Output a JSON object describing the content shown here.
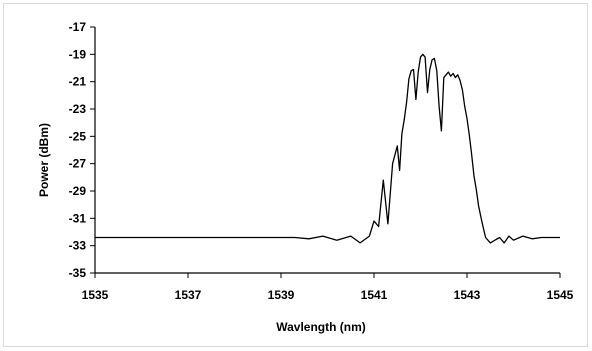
{
  "chart_data": {
    "type": "line",
    "title": "",
    "xlabel": "Wavlength (nm)",
    "ylabel": "Power (dBm)",
    "xlim": [
      1535,
      1545
    ],
    "ylim": [
      -35,
      -17
    ],
    "x_ticks": [
      1535,
      1537,
      1539,
      1541,
      1543,
      1545
    ],
    "y_ticks": [
      -35,
      -33,
      -31,
      -29,
      -27,
      -25,
      -23,
      -21,
      -19,
      -17
    ],
    "grid": false,
    "legend": "none",
    "line_color": "#000000",
    "series": [
      {
        "x": [
          1535.0,
          1535.5,
          1536.0,
          1536.5,
          1537.0,
          1537.5,
          1538.0,
          1538.5,
          1539.0,
          1539.3,
          1539.6,
          1539.9,
          1540.2,
          1540.5,
          1540.7,
          1540.9,
          1541.0,
          1541.1,
          1541.2,
          1541.3,
          1541.4,
          1541.5,
          1541.55,
          1541.6,
          1541.65,
          1541.7,
          1541.75,
          1541.8,
          1541.85,
          1541.9,
          1541.95,
          1542.0,
          1542.05,
          1542.1,
          1542.15,
          1542.2,
          1542.25,
          1542.3,
          1542.35,
          1542.4,
          1542.45,
          1542.5,
          1542.55,
          1542.6,
          1542.65,
          1542.7,
          1542.75,
          1542.8,
          1542.85,
          1542.9,
          1542.95,
          1543.0,
          1543.05,
          1543.1,
          1543.15,
          1543.2,
          1543.25,
          1543.3,
          1543.35,
          1543.4,
          1543.5,
          1543.6,
          1543.7,
          1543.8,
          1543.9,
          1544.0,
          1544.2,
          1544.4,
          1544.6,
          1544.8,
          1545.0
        ],
        "y": [
          -32.4,
          -32.4,
          -32.4,
          -32.4,
          -32.4,
          -32.4,
          -32.4,
          -32.4,
          -32.4,
          -32.4,
          -32.5,
          -32.3,
          -32.6,
          -32.3,
          -32.8,
          -32.3,
          -31.2,
          -31.6,
          -28.2,
          -31.4,
          -27.0,
          -25.7,
          -27.5,
          -24.8,
          -23.8,
          -22.5,
          -20.8,
          -20.2,
          -20.1,
          -22.3,
          -20.3,
          -19.2,
          -19.0,
          -19.2,
          -21.8,
          -20.1,
          -19.4,
          -19.3,
          -20.2,
          -22.8,
          -24.6,
          -20.7,
          -20.5,
          -20.3,
          -20.6,
          -20.4,
          -20.7,
          -20.5,
          -20.9,
          -21.6,
          -22.8,
          -23.7,
          -24.9,
          -26.3,
          -27.9,
          -28.9,
          -30.1,
          -30.9,
          -31.7,
          -32.4,
          -32.8,
          -32.6,
          -32.4,
          -32.8,
          -32.3,
          -32.6,
          -32.3,
          -32.5,
          -32.4,
          -32.4,
          -32.4
        ]
      }
    ]
  }
}
